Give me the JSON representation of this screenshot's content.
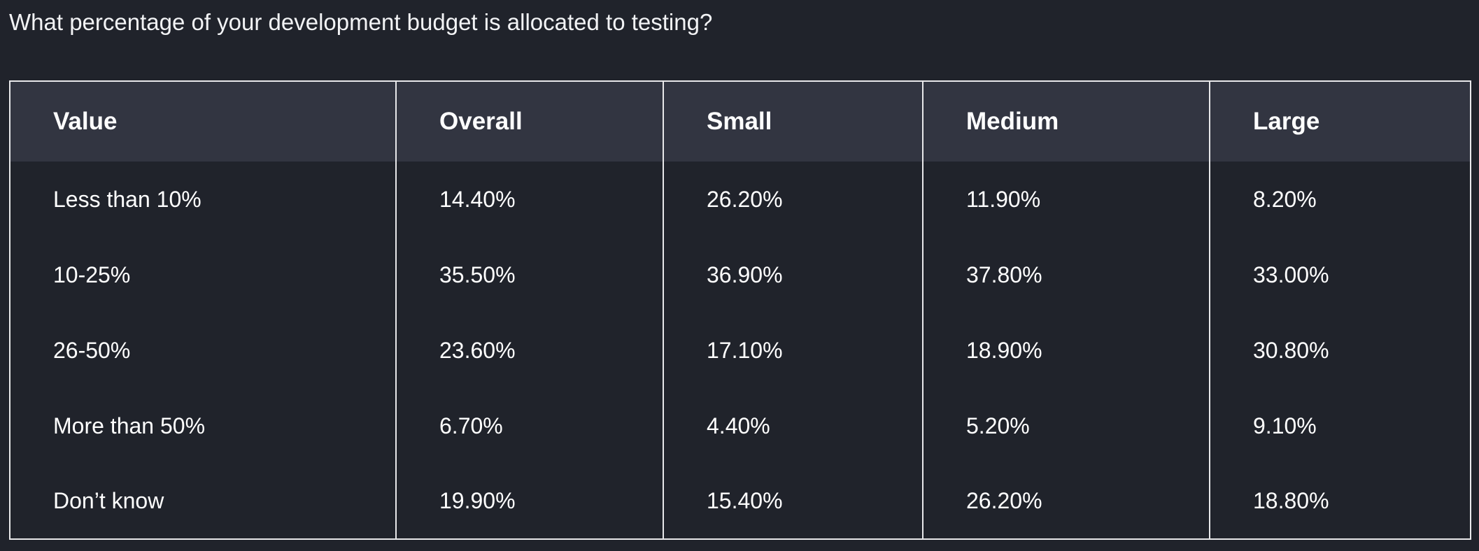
{
  "question": "What percentage of your development budget is allocated to testing?",
  "table": {
    "headers": [
      "Value",
      "Overall",
      "Small",
      "Medium",
      "Large"
    ],
    "rows": [
      [
        "Less than 10%",
        "14.40%",
        "26.20%",
        "11.90%",
        "8.20%"
      ],
      [
        "10-25%",
        "35.50%",
        "36.90%",
        "37.80%",
        "33.00%"
      ],
      [
        "26-50%",
        "23.60%",
        "17.10%",
        "18.90%",
        "30.80%"
      ],
      [
        "More than 50%",
        "6.70%",
        "4.40%",
        "5.20%",
        "9.10%"
      ],
      [
        "Don’t know",
        "19.90%",
        "15.40%",
        "26.20%",
        "18.80%"
      ]
    ]
  },
  "colors": {
    "background": "#20232b",
    "header_background": "#323541",
    "border": "#e8e8ea",
    "text": "#ffffff"
  }
}
